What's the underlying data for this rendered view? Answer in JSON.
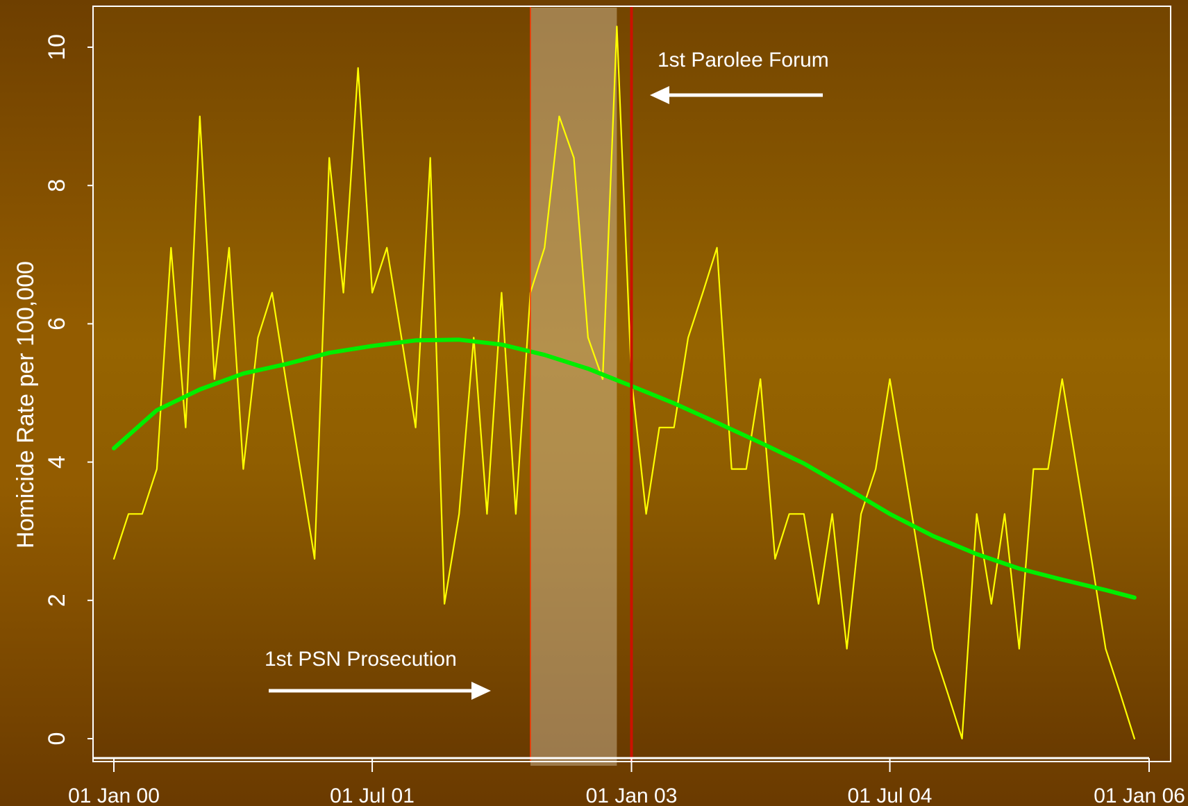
{
  "chart_data": {
    "type": "line",
    "title": "",
    "xlabel": "",
    "ylabel": "Homicide Rate per 100,000",
    "x_ticks": [
      "01 Jan 00",
      "01 Jul 01",
      "01 Jan 03",
      "01 Jul 04",
      "01 Jan 06"
    ],
    "xlim": [
      "2000-01-01",
      "2006-01-01"
    ],
    "ylim": [
      0,
      10.5
    ],
    "y_ticks": [
      0,
      2,
      4,
      6,
      8,
      10
    ],
    "grid": false,
    "series": [
      {
        "kind": "monthly",
        "color": "#ffff00",
        "x": [
          "2000-01",
          "2000-02",
          "2000-03",
          "2000-04",
          "2000-05",
          "2000-06",
          "2000-07",
          "2000-08",
          "2000-09",
          "2000-10",
          "2000-11",
          "2000-12",
          "2001-01",
          "2001-02",
          "2001-03",
          "2001-04",
          "2001-05",
          "2001-06",
          "2001-07",
          "2001-08",
          "2001-09",
          "2001-10",
          "2001-11",
          "2001-12",
          "2002-01",
          "2002-02",
          "2002-03",
          "2002-04",
          "2002-05",
          "2002-06",
          "2002-07",
          "2002-08",
          "2002-09",
          "2002-10",
          "2002-11",
          "2002-12",
          "2003-01",
          "2003-02",
          "2003-03",
          "2003-04",
          "2003-05",
          "2003-06",
          "2003-07",
          "2003-08",
          "2003-09",
          "2003-10",
          "2003-11",
          "2003-12",
          "2004-01",
          "2004-02",
          "2004-03",
          "2004-04",
          "2004-05",
          "2004-06",
          "2004-07",
          "2004-08",
          "2004-09",
          "2004-10",
          "2004-11",
          "2004-12",
          "2005-01",
          "2005-02",
          "2005-03",
          "2005-04",
          "2005-05",
          "2005-06",
          "2005-07",
          "2005-08",
          "2005-09",
          "2005-10",
          "2005-11",
          "2005-12"
        ],
        "values": [
          2.6,
          3.25,
          3.25,
          3.9,
          7.1,
          4.5,
          9.0,
          5.2,
          7.1,
          3.9,
          5.8,
          6.45,
          5.1,
          3.8,
          2.6,
          8.4,
          6.45,
          9.7,
          6.45,
          7.1,
          5.8,
          4.5,
          8.4,
          1.95,
          3.25,
          5.8,
          3.25,
          6.45,
          3.25,
          6.45,
          7.1,
          9.0,
          8.4,
          5.8,
          5.2,
          10.3,
          5.2,
          3.25,
          4.5,
          4.5,
          5.8,
          6.45,
          7.1,
          3.9,
          3.9,
          5.2,
          2.6,
          3.25,
          3.25,
          1.95,
          3.25,
          1.3,
          3.25,
          3.9,
          5.2,
          3.9,
          2.6,
          1.3,
          0.65,
          0.0,
          3.25,
          1.95,
          3.25,
          1.3,
          3.9,
          3.9,
          5.2,
          3.9,
          2.6,
          1.3,
          0.65,
          0.0
        ]
      },
      {
        "kind": "smoothed",
        "color": "#00ee00",
        "x": [
          "2000-01",
          "2000-04",
          "2000-07",
          "2000-10",
          "2001-01",
          "2001-04",
          "2001-07",
          "2001-10",
          "2002-01",
          "2002-04",
          "2002-07",
          "2002-10",
          "2003-01",
          "2003-04",
          "2003-07",
          "2003-10",
          "2004-01",
          "2004-04",
          "2004-07",
          "2004-10",
          "2005-01",
          "2005-04",
          "2005-07",
          "2005-10",
          "2005-12"
        ],
        "values": [
          4.2,
          4.75,
          5.05,
          5.28,
          5.42,
          5.58,
          5.68,
          5.76,
          5.77,
          5.7,
          5.55,
          5.35,
          5.1,
          4.85,
          4.57,
          4.28,
          3.98,
          3.62,
          3.25,
          2.93,
          2.67,
          2.46,
          2.3,
          2.15,
          2.04
        ]
      }
    ],
    "shaded_region": [
      "2002-06",
      "2002-12"
    ],
    "vertical_lines": [
      {
        "x": "2003-01-01",
        "color": "#cc1100"
      },
      {
        "x": "2002-06-01",
        "color": "#ff3300"
      }
    ],
    "annotations": [
      {
        "text": "1st Parolee Forum",
        "arrow": "left"
      },
      {
        "text": "1st PSN Prosecution",
        "arrow": "right"
      }
    ]
  }
}
